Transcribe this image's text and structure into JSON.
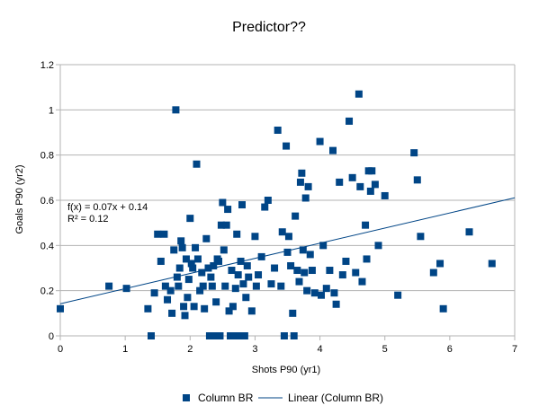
{
  "chart_data": {
    "type": "scatter",
    "title": "Predictor??",
    "xlabel": "Shots P90 (yr1)",
    "ylabel": "Goals P90 (yr2)",
    "xlim": [
      0,
      7
    ],
    "ylim": [
      0,
      1.2
    ],
    "x_ticks": [
      "0",
      "1",
      "2",
      "3",
      "4",
      "5",
      "6",
      "7"
    ],
    "y_ticks": [
      "0",
      "0.2",
      "0.4",
      "0.6",
      "0.8",
      "1",
      "1.2"
    ],
    "grid": "horizontal",
    "legend_position": "bottom",
    "colors": {
      "marker": "#004586",
      "trendline": "#004586",
      "grid": "#b3b3b3"
    },
    "series": [
      {
        "name": "Column BR",
        "marker": "square",
        "points": [
          [
            0.0,
            0.12
          ],
          [
            0.75,
            0.22
          ],
          [
            1.02,
            0.21
          ],
          [
            1.35,
            0.12
          ],
          [
            1.4,
            0.0
          ],
          [
            1.45,
            0.19
          ],
          [
            1.5,
            0.45
          ],
          [
            1.55,
            0.33
          ],
          [
            1.6,
            0.45
          ],
          [
            1.62,
            0.22
          ],
          [
            1.65,
            0.16
          ],
          [
            1.7,
            0.2
          ],
          [
            1.72,
            0.1
          ],
          [
            1.75,
            0.38
          ],
          [
            1.78,
            1.0
          ],
          [
            1.8,
            0.26
          ],
          [
            1.82,
            0.22
          ],
          [
            1.84,
            0.3
          ],
          [
            1.86,
            0.42
          ],
          [
            1.88,
            0.39
          ],
          [
            1.9,
            0.13
          ],
          [
            1.92,
            0.09
          ],
          [
            1.94,
            0.34
          ],
          [
            1.96,
            0.17
          ],
          [
            1.98,
            0.25
          ],
          [
            2.0,
            0.52
          ],
          [
            2.02,
            0.32
          ],
          [
            2.04,
            0.3
          ],
          [
            2.06,
            0.13
          ],
          [
            2.08,
            0.39
          ],
          [
            2.1,
            0.76
          ],
          [
            2.12,
            0.34
          ],
          [
            2.15,
            0.2
          ],
          [
            2.18,
            0.28
          ],
          [
            2.2,
            0.22
          ],
          [
            2.22,
            0.12
          ],
          [
            2.25,
            0.43
          ],
          [
            2.28,
            0.3
          ],
          [
            2.3,
            0.0
          ],
          [
            2.32,
            0.26
          ],
          [
            2.34,
            0.22
          ],
          [
            2.36,
            0.31
          ],
          [
            2.38,
            0.0
          ],
          [
            2.4,
            0.15
          ],
          [
            2.42,
            0.34
          ],
          [
            2.44,
            0.33
          ],
          [
            2.46,
            0.0
          ],
          [
            2.48,
            0.49
          ],
          [
            2.5,
            0.59
          ],
          [
            2.52,
            0.38
          ],
          [
            2.54,
            0.22
          ],
          [
            2.56,
            0.49
          ],
          [
            2.58,
            0.56
          ],
          [
            2.6,
            0.11
          ],
          [
            2.62,
            0.0
          ],
          [
            2.64,
            0.29
          ],
          [
            2.66,
            0.13
          ],
          [
            2.68,
            0.0
          ],
          [
            2.7,
            0.21
          ],
          [
            2.72,
            0.45
          ],
          [
            2.74,
            0.27
          ],
          [
            2.76,
            0.0
          ],
          [
            2.78,
            0.33
          ],
          [
            2.8,
            0.58
          ],
          [
            2.82,
            0.23
          ],
          [
            2.84,
            0.0
          ],
          [
            2.86,
            0.17
          ],
          [
            2.88,
            0.31
          ],
          [
            2.9,
            0.26
          ],
          [
            2.95,
            0.11
          ],
          [
            3.0,
            0.44
          ],
          [
            3.02,
            0.22
          ],
          [
            3.05,
            0.27
          ],
          [
            3.1,
            0.35
          ],
          [
            3.15,
            0.57
          ],
          [
            3.2,
            0.6
          ],
          [
            3.25,
            0.23
          ],
          [
            3.3,
            0.3
          ],
          [
            3.35,
            0.91
          ],
          [
            3.4,
            0.22
          ],
          [
            3.42,
            0.46
          ],
          [
            3.45,
            0.0
          ],
          [
            3.48,
            0.84
          ],
          [
            3.5,
            0.37
          ],
          [
            3.52,
            0.44
          ],
          [
            3.55,
            0.31
          ],
          [
            3.58,
            0.1
          ],
          [
            3.6,
            0.0
          ],
          [
            3.62,
            0.53
          ],
          [
            3.65,
            0.29
          ],
          [
            3.68,
            0.24
          ],
          [
            3.7,
            0.68
          ],
          [
            3.72,
            0.72
          ],
          [
            3.74,
            0.38
          ],
          [
            3.76,
            0.28
          ],
          [
            3.78,
            0.61
          ],
          [
            3.8,
            0.2
          ],
          [
            3.82,
            0.66
          ],
          [
            3.85,
            0.36
          ],
          [
            3.88,
            0.29
          ],
          [
            3.92,
            0.19
          ],
          [
            4.0,
            0.86
          ],
          [
            4.02,
            0.18
          ],
          [
            4.05,
            0.4
          ],
          [
            4.1,
            0.21
          ],
          [
            4.15,
            0.29
          ],
          [
            4.2,
            0.82
          ],
          [
            4.22,
            0.19
          ],
          [
            4.25,
            0.14
          ],
          [
            4.3,
            0.68
          ],
          [
            4.35,
            0.27
          ],
          [
            4.4,
            0.33
          ],
          [
            4.45,
            0.95
          ],
          [
            4.5,
            0.7
          ],
          [
            4.55,
            0.28
          ],
          [
            4.6,
            1.07
          ],
          [
            4.62,
            0.66
          ],
          [
            4.65,
            0.24
          ],
          [
            4.7,
            0.49
          ],
          [
            4.72,
            0.34
          ],
          [
            4.75,
            0.73
          ],
          [
            4.78,
            0.64
          ],
          [
            4.8,
            0.73
          ],
          [
            4.85,
            0.67
          ],
          [
            4.9,
            0.4
          ],
          [
            5.0,
            0.62
          ],
          [
            5.2,
            0.18
          ],
          [
            5.45,
            0.81
          ],
          [
            5.5,
            0.69
          ],
          [
            5.55,
            0.44
          ],
          [
            5.75,
            0.28
          ],
          [
            5.85,
            0.32
          ],
          [
            5.9,
            0.12
          ],
          [
            6.3,
            0.46
          ],
          [
            6.65,
            0.32
          ]
        ]
      },
      {
        "name": "Linear (Column BR)",
        "type": "trendline",
        "slope": 0.067,
        "intercept": 0.142
      }
    ],
    "annotations": [
      "f(x) = 0.07x + 0.14",
      "R² = 0.12"
    ]
  }
}
